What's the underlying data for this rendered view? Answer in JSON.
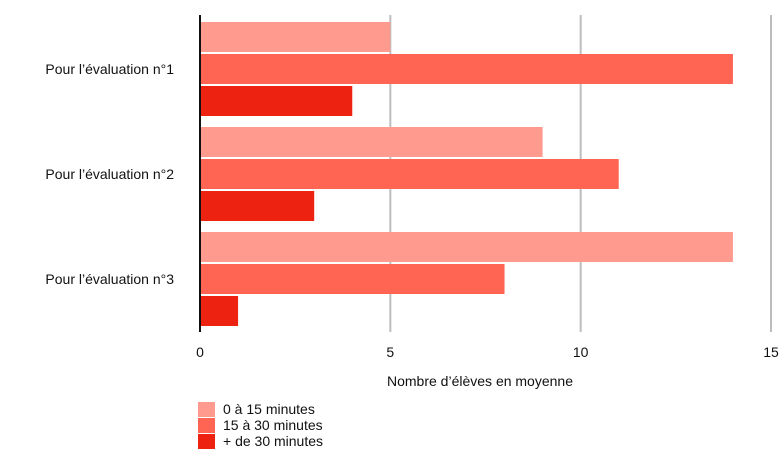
{
  "chart_data": {
    "type": "bar",
    "orientation": "horizontal",
    "categories": [
      "Pour l’évaluation n°1",
      "Pour l’évaluation n°2",
      "Pour l’évaluation n°3"
    ],
    "series": [
      {
        "name": "0 à 15 minutes",
        "values": [
          5,
          9,
          14
        ],
        "color": "#FF9A8E"
      },
      {
        "name": "15 à 30 minutes",
        "values": [
          14,
          11,
          8
        ],
        "color": "#FF6552"
      },
      {
        "name": "+ de 30 minutes",
        "values": [
          4,
          3,
          1
        ],
        "color": "#EE2211"
      }
    ],
    "xlabel": "Nombre d’élèves en moyenne",
    "xlim": [
      0,
      15
    ],
    "xticks": [
      0,
      5,
      10,
      15
    ],
    "grid": true,
    "legend_position": "bottom-left"
  }
}
